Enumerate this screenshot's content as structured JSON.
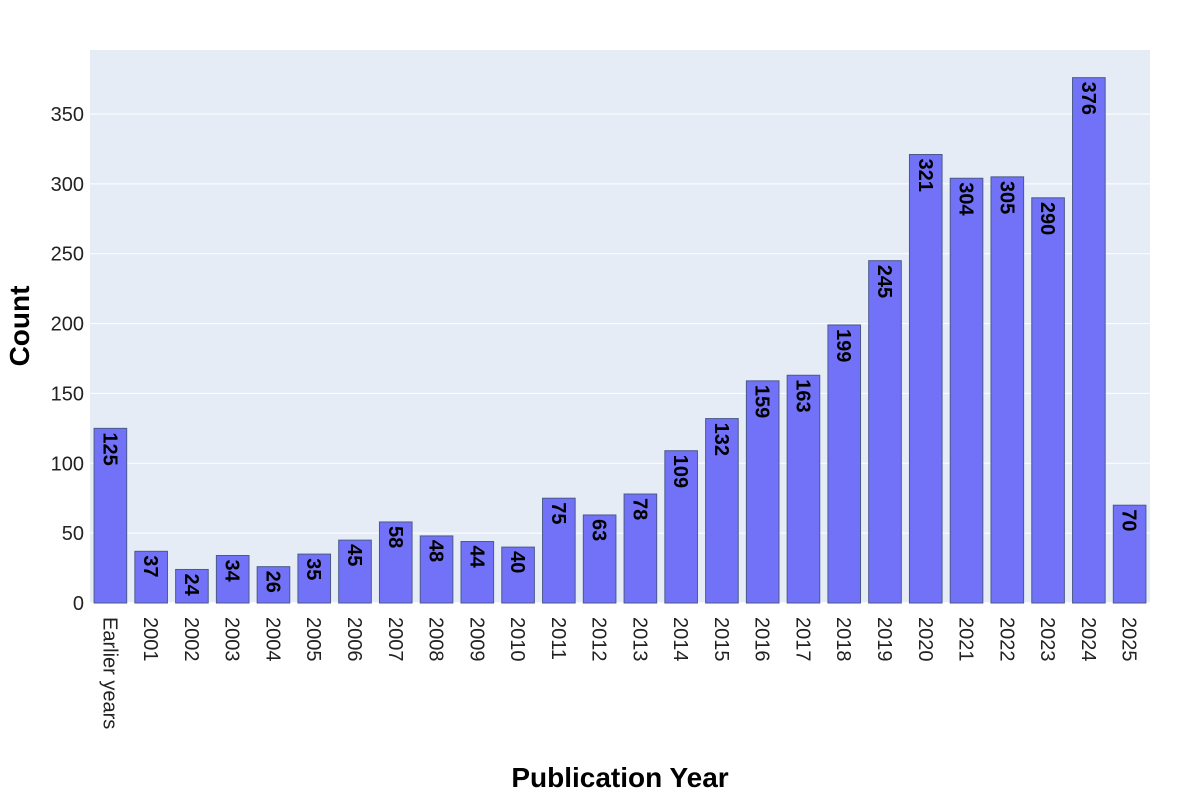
{
  "chart_data": {
    "type": "bar",
    "title": "",
    "xlabel": "Publication Year",
    "ylabel": "Count",
    "categories": [
      "Earlier years",
      "2001",
      "2002",
      "2003",
      "2004",
      "2005",
      "2006",
      "2007",
      "2008",
      "2009",
      "2010",
      "2011",
      "2012",
      "2013",
      "2014",
      "2015",
      "2016",
      "2017",
      "2018",
      "2019",
      "2020",
      "2021",
      "2022",
      "2023",
      "2024",
      "2025"
    ],
    "values": [
      125,
      37,
      24,
      34,
      26,
      35,
      45,
      58,
      48,
      44,
      40,
      75,
      63,
      78,
      109,
      132,
      159,
      163,
      199,
      245,
      321,
      304,
      305,
      290,
      376,
      70
    ],
    "ylim": [
      0,
      395.8
    ],
    "yticks": [
      0,
      50,
      100,
      150,
      200,
      250,
      300,
      350
    ],
    "grid": true,
    "bar_color": "#7272f8",
    "bar_outline": "#4a5a8a",
    "plot_background": "#e5ecf6",
    "gridline_color": "#ffffff"
  }
}
